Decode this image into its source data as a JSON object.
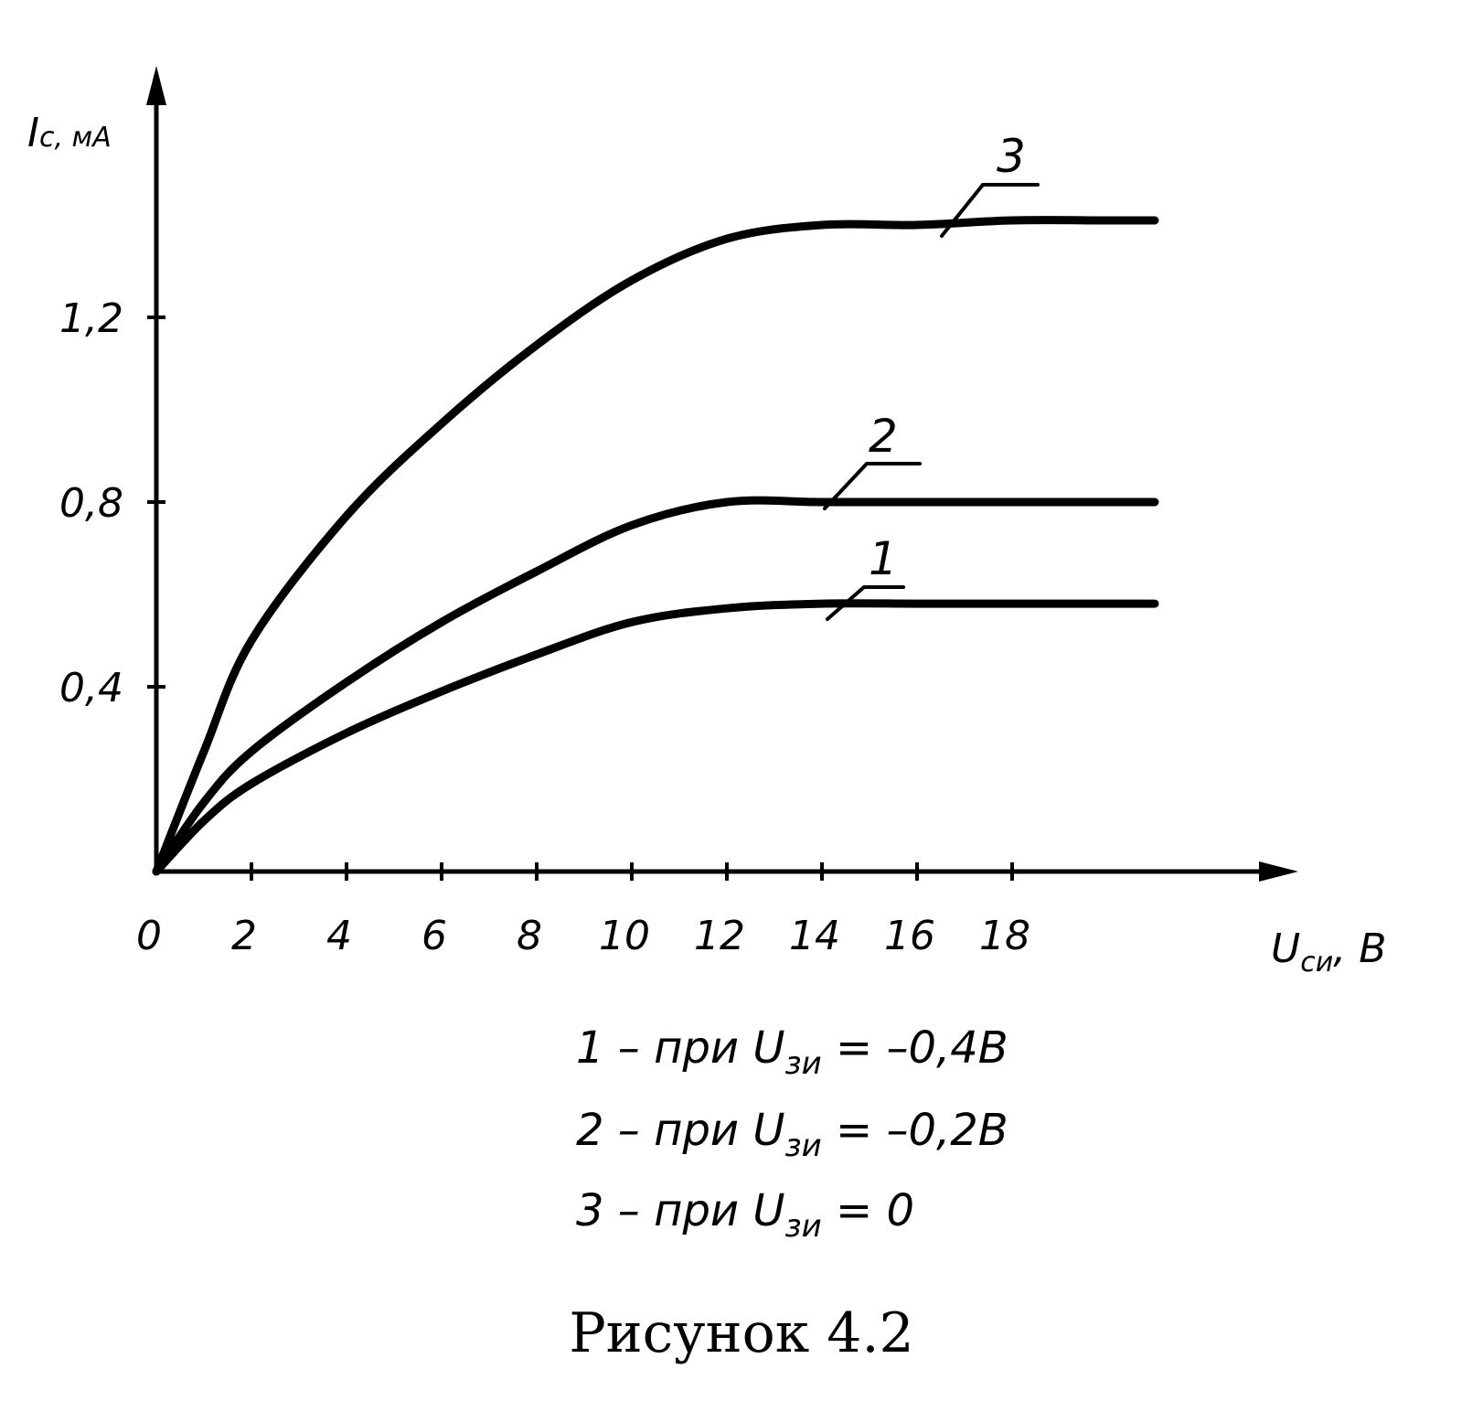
{
  "chart_data": {
    "type": "line",
    "title": "",
    "xlabel": {
      "main": "U",
      "sub": "си",
      "rest": ", В"
    },
    "ylabel": {
      "main": "I",
      "sub": "с",
      "rest": ", мА"
    },
    "xlim": [
      0,
      24
    ],
    "ylim": [
      0,
      1.75
    ],
    "x_ticks": [
      0,
      2,
      4,
      6,
      8,
      10,
      12,
      14,
      16,
      18
    ],
    "x_tick_labels": [
      "0",
      "2",
      "4",
      "6",
      "8",
      "10",
      "12",
      "14",
      "16",
      "18"
    ],
    "y_ticks": [
      0.4,
      0.8,
      1.2
    ],
    "y_tick_labels": [
      "0,4",
      "0,8",
      "1,2"
    ],
    "grid": false,
    "series": [
      {
        "name": "1",
        "x": [
          0,
          1,
          2,
          4,
          6,
          8,
          10,
          12,
          14,
          16,
          18,
          20,
          21
        ],
        "y": [
          0,
          0.11,
          0.19,
          0.3,
          0.39,
          0.47,
          0.54,
          0.57,
          0.58,
          0.58,
          0.58,
          0.58,
          0.58
        ]
      },
      {
        "name": "2",
        "x": [
          0,
          1,
          2,
          4,
          6,
          8,
          10,
          12,
          14,
          16,
          18,
          20,
          21
        ],
        "y": [
          0,
          0.15,
          0.26,
          0.41,
          0.54,
          0.65,
          0.75,
          0.8,
          0.8,
          0.8,
          0.8,
          0.8,
          0.8
        ]
      },
      {
        "name": "3",
        "x": [
          0,
          1,
          2,
          4,
          6,
          8,
          10,
          12,
          14,
          16,
          18,
          20,
          21
        ],
        "y": [
          0,
          0.26,
          0.5,
          0.77,
          0.97,
          1.14,
          1.28,
          1.37,
          1.4,
          1.4,
          1.41,
          1.41,
          1.41
        ]
      }
    ],
    "legend": [
      {
        "num": "1",
        "text": " – при  ",
        "var": "U",
        "sub": "зи",
        "value": " = –0,4В"
      },
      {
        "num": "2",
        "text": " – при  ",
        "var": "U",
        "sub": "зи",
        "value": " = –0,2В"
      },
      {
        "num": "3",
        "text": " – при  ",
        "var": "U",
        "sub": "зи",
        "value": " = 0"
      }
    ],
    "legend_placement": "bottom-center"
  },
  "caption": "Рисунок 4.2"
}
